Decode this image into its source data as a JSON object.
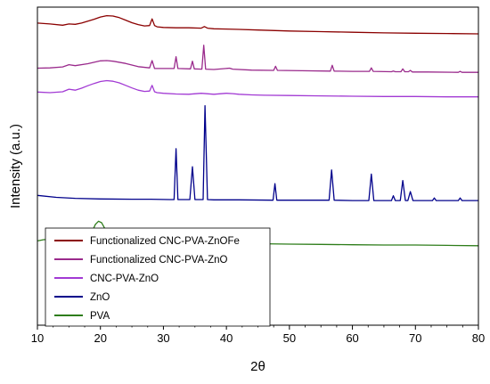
{
  "chart_data": {
    "type": "line",
    "title": "",
    "xlabel": "2θ",
    "ylabel": "Intensity (a.u.)",
    "xlim": [
      10,
      80
    ],
    "ylim": [
      0,
      100
    ],
    "grid": false,
    "legend_position": "bottom-left",
    "x_ticks": [
      10,
      20,
      30,
      40,
      50,
      60,
      70,
      80
    ],
    "series": [
      {
        "name": "Functionalized CNC-PVA-ZnOFe",
        "color": "#8b0000",
        "x": [
          10,
          12,
          14,
          15,
          16,
          17,
          18,
          19,
          20,
          21,
          22,
          23,
          24,
          25,
          26,
          27,
          27.8,
          28.2,
          28.6,
          29,
          30,
          32,
          34,
          36,
          36.5,
          37,
          38,
          40,
          42,
          45,
          50,
          55,
          60,
          65,
          70,
          75,
          80
        ],
        "y": [
          95.0,
          94.7,
          94.3,
          94.7,
          94.6,
          95.0,
          95.6,
          96.2,
          96.9,
          97.3,
          97.2,
          96.7,
          95.9,
          95.1,
          94.5,
          94.1,
          94.2,
          96.3,
          94.2,
          93.8,
          93.6,
          93.5,
          93.5,
          93.4,
          93.9,
          93.4,
          93.2,
          93.1,
          93.0,
          92.8,
          92.5,
          92.3,
          92.1,
          91.9,
          91.8,
          91.7,
          91.6
        ]
      },
      {
        "name": "Functionalized CNC-PVA-ZnO",
        "color": "#9a2a8c",
        "x": [
          10,
          12,
          14,
          15,
          16,
          18,
          20,
          21,
          22,
          24,
          26,
          27.8,
          28.2,
          28.6,
          30,
          31.7,
          32.0,
          32.3,
          34.3,
          34.6,
          34.9,
          36.1,
          36.4,
          36.7,
          38,
          40.5,
          41,
          44,
          47.5,
          47.8,
          48.1,
          52,
          56.5,
          56.8,
          57.1,
          60,
          62.7,
          63.0,
          63.3,
          66.2,
          66.5,
          66.8,
          67.7,
          68.0,
          68.3,
          68.9,
          69.2,
          69.5,
          72,
          76.8,
          77.1,
          77.4,
          80
        ],
        "y": [
          80.8,
          80.9,
          81.2,
          81.9,
          81.6,
          82.2,
          83.1,
          83.2,
          83.0,
          82.3,
          81.3,
          80.9,
          83.2,
          80.7,
          80.7,
          80.7,
          84.4,
          80.7,
          80.6,
          83.0,
          80.6,
          80.5,
          88.0,
          80.5,
          80.4,
          80.8,
          80.5,
          80.2,
          80.1,
          81.4,
          80.1,
          80.0,
          79.9,
          81.7,
          79.9,
          79.8,
          79.8,
          80.9,
          79.8,
          79.7,
          79.9,
          79.7,
          79.7,
          80.6,
          79.7,
          79.7,
          80.1,
          79.6,
          79.6,
          79.5,
          79.8,
          79.5,
          79.5
        ]
      },
      {
        "name": "CNC-PVA-ZnO",
        "color": "#a23ad4",
        "x": [
          10,
          12,
          14,
          15,
          16,
          17,
          18,
          19,
          20,
          21,
          22,
          23,
          24,
          25,
          26,
          27,
          27.8,
          28.2,
          28.6,
          29,
          30,
          32,
          34,
          36,
          38,
          40,
          41,
          42,
          44,
          46,
          50,
          55,
          60,
          65,
          70,
          75,
          80
        ],
        "y": [
          73.3,
          73.1,
          73.4,
          74.2,
          73.9,
          74.5,
          75.3,
          76.0,
          76.6,
          76.9,
          76.7,
          76.2,
          75.4,
          74.6,
          73.9,
          73.5,
          73.6,
          75.4,
          73.4,
          73.1,
          72.9,
          72.7,
          72.6,
          72.9,
          72.6,
          72.9,
          72.8,
          72.6,
          72.4,
          72.3,
          72.2,
          72.1,
          72.0,
          71.9,
          71.9,
          71.8,
          71.8
        ]
      },
      {
        "name": "ZnO",
        "color": "#00008b",
        "x": [
          10,
          13,
          16,
          20,
          25,
          28,
          31,
          31.7,
          32.0,
          32.3,
          33,
          34.2,
          34.6,
          35.0,
          35.8,
          36.3,
          36.6,
          37.0,
          38,
          42,
          47.4,
          47.7,
          48.0,
          50,
          56.3,
          56.7,
          57.1,
          60,
          62.6,
          63.0,
          63.4,
          65,
          66.2,
          66.5,
          66.8,
          67.6,
          68.0,
          68.4,
          68.8,
          69.2,
          69.6,
          71,
          72.7,
          73.0,
          73.3,
          76.8,
          77.1,
          77.4,
          80
        ],
        "y": [
          40.8,
          40.2,
          39.9,
          39.7,
          39.6,
          39.6,
          39.5,
          39.5,
          55.5,
          39.5,
          39.5,
          39.5,
          49.8,
          39.5,
          39.5,
          39.5,
          69.0,
          39.5,
          39.4,
          39.4,
          39.3,
          44.5,
          39.3,
          39.3,
          39.3,
          48.8,
          39.3,
          39.2,
          39.2,
          47.5,
          39.2,
          39.2,
          39.2,
          40.7,
          39.2,
          39.2,
          45.5,
          39.2,
          39.2,
          42.0,
          39.2,
          39.2,
          39.2,
          40.0,
          39.2,
          39.2,
          40.0,
          39.2,
          39.2
        ]
      },
      {
        "name": "PVA",
        "color": "#2e7d1a",
        "x": [
          10,
          11,
          12,
          13,
          14,
          15,
          16,
          17,
          18,
          18.7,
          19.2,
          19.7,
          20.2,
          20.8,
          21.5,
          22.2,
          23.0,
          23.8,
          24.5,
          25.5,
          27,
          29,
          32,
          35,
          38,
          39.5,
          40.6,
          41.8,
          43,
          46,
          50,
          55,
          60,
          65,
          70,
          75,
          80
        ],
        "y": [
          26.5,
          26.9,
          27.0,
          26.6,
          26.4,
          26.5,
          26.6,
          26.8,
          27.7,
          29.5,
          31.7,
          32.7,
          32.2,
          30.0,
          28.4,
          28.3,
          28.8,
          28.3,
          27.2,
          26.5,
          26.2,
          26.1,
          26.0,
          25.9,
          25.8,
          26.0,
          26.9,
          26.0,
          25.7,
          25.6,
          25.5,
          25.4,
          25.3,
          25.2,
          25.2,
          25.1,
          25.0
        ]
      }
    ]
  }
}
